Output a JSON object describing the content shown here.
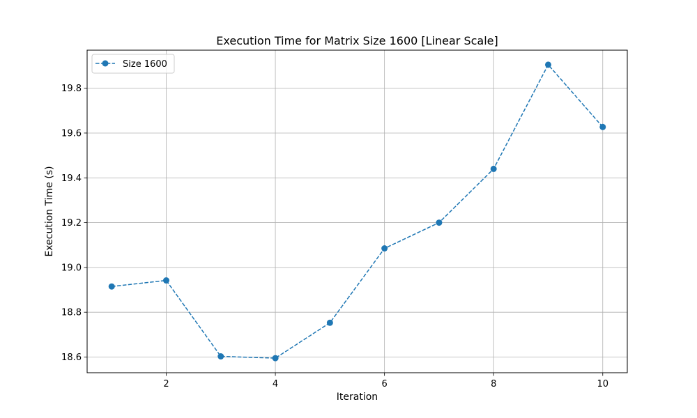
{
  "chart_data": {
    "type": "line",
    "title": "Execution Time for Matrix Size 1600 [Linear Scale]",
    "xlabel": "Iteration",
    "ylabel": "Execution Time (s)",
    "xlim": [
      0.55,
      10.45
    ],
    "ylim": [
      18.53,
      19.97
    ],
    "xticks": [
      2,
      4,
      6,
      8,
      10
    ],
    "yticks": [
      18.6,
      18.8,
      19.0,
      19.2,
      19.4,
      19.6,
      19.8
    ],
    "ytick_labels": [
      "18.6",
      "18.8",
      "19.0",
      "19.2",
      "19.4",
      "19.6",
      "19.8"
    ],
    "grid": true,
    "legend_position": "top-left",
    "series": [
      {
        "name": "Size 1600",
        "color": "#1f77b4",
        "line_style": "dashed",
        "marker": "circle",
        "x": [
          1,
          2,
          3,
          4,
          5,
          6,
          7,
          8,
          9,
          10
        ],
        "y": [
          18.915,
          18.942,
          18.603,
          18.595,
          18.753,
          19.085,
          19.2,
          19.44,
          19.905,
          19.627
        ]
      }
    ]
  }
}
